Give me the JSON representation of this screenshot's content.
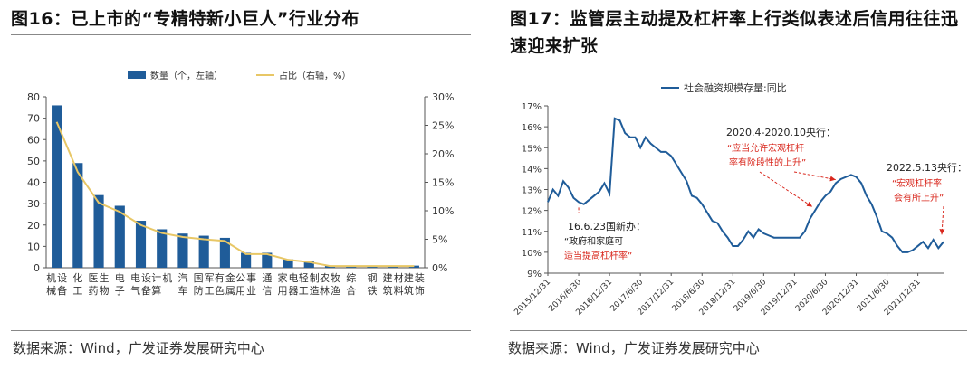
{
  "left": {
    "title": "图16：已上市的“专精特新小巨人”行业分布",
    "source": "数据来源：Wind，广发证券发展研究中心"
  },
  "right": {
    "title": "图17：监管层主动提及杠杆率上行类似表述后信用往往迅速迎来扩张",
    "source": "数据来源：Wind，广发证券发展研究中心"
  },
  "chart_data": [
    {
      "type": "bar",
      "categories": [
        "机械设备",
        "化工",
        "医药生物",
        "电子",
        "电气设备",
        "计算机",
        "汽车",
        "国防军工",
        "有色金属",
        "公用事业",
        "通信",
        "家用电器",
        "轻工制造",
        "农林牧渔",
        "综合",
        "钢铁",
        "建筑材料",
        "建筑装饰"
      ],
      "series": [
        {
          "name": "数量（个，左轴）",
          "axis": "left",
          "kind": "bar",
          "values": [
            76,
            49,
            34,
            29,
            22,
            18,
            16,
            15,
            14,
            7,
            7,
            4,
            3,
            1,
            1,
            1,
            1,
            1
          ]
        },
        {
          "name": "占比（右轴，%）",
          "axis": "right",
          "kind": "line",
          "values": [
            25.6,
            16.8,
            11.4,
            9.8,
            7.5,
            6.1,
            5.4,
            5.0,
            4.7,
            2.4,
            2.4,
            1.4,
            1.0,
            0.3,
            0.3,
            0.3,
            0.3,
            0.3
          ]
        }
      ],
      "ylim": [
        0,
        80
      ],
      "yticks": [
        0,
        10,
        20,
        30,
        40,
        50,
        60,
        70,
        80
      ],
      "y2lim": [
        0,
        30
      ],
      "y2ticks": [
        "0%",
        "5%",
        "10%",
        "15%",
        "20%",
        "25%",
        "30%"
      ],
      "legend_position": "top-center",
      "grid": false,
      "colors": {
        "bar": "#1f5c99",
        "line": "#e8c766"
      }
    },
    {
      "type": "line",
      "series": [
        {
          "name": "社会融资规模存量:同比",
          "x": [
            "2015-12",
            "2016-01",
            "2016-02",
            "2016-03",
            "2016-04",
            "2016-05",
            "2016-06",
            "2016-07",
            "2016-08",
            "2016-09",
            "2016-10",
            "2016-11",
            "2016-12",
            "2017-01",
            "2017-02",
            "2017-03",
            "2017-04",
            "2017-05",
            "2017-06",
            "2017-07",
            "2017-08",
            "2017-09",
            "2017-10",
            "2017-11",
            "2017-12",
            "2018-01",
            "2018-02",
            "2018-03",
            "2018-04",
            "2018-05",
            "2018-06",
            "2018-07",
            "2018-08",
            "2018-09",
            "2018-10",
            "2018-11",
            "2018-12",
            "2019-01",
            "2019-02",
            "2019-03",
            "2019-04",
            "2019-05",
            "2019-06",
            "2019-07",
            "2019-08",
            "2019-09",
            "2019-10",
            "2019-11",
            "2019-12",
            "2020-01",
            "2020-02",
            "2020-03",
            "2020-04",
            "2020-05",
            "2020-06",
            "2020-07",
            "2020-08",
            "2020-09",
            "2020-10",
            "2020-11",
            "2020-12",
            "2021-01",
            "2021-02",
            "2021-03",
            "2021-04",
            "2021-05",
            "2021-06",
            "2021-07",
            "2021-08",
            "2021-09",
            "2021-10",
            "2021-11",
            "2021-12",
            "2022-01",
            "2022-02",
            "2022-03",
            "2022-04",
            "2022-05"
          ],
          "values": [
            12.4,
            13.0,
            12.7,
            13.4,
            13.1,
            12.6,
            12.4,
            12.3,
            12.5,
            12.7,
            12.9,
            13.3,
            12.8,
            16.4,
            16.3,
            15.7,
            15.5,
            15.5,
            15.0,
            15.5,
            15.2,
            15.0,
            14.8,
            14.8,
            14.6,
            14.2,
            13.8,
            13.4,
            12.7,
            12.6,
            12.3,
            11.9,
            11.5,
            11.4,
            11.0,
            10.7,
            10.3,
            10.3,
            10.6,
            11.0,
            10.7,
            11.1,
            10.9,
            10.8,
            10.7,
            10.7,
            10.7,
            10.7,
            10.7,
            10.7,
            11.0,
            11.6,
            12.0,
            12.4,
            12.7,
            12.9,
            13.3,
            13.5,
            13.6,
            13.7,
            13.6,
            13.3,
            12.7,
            12.3,
            11.7,
            11.0,
            10.9,
            10.7,
            10.3,
            10.0,
            10.0,
            10.1,
            10.3,
            10.5,
            10.2,
            10.6,
            10.2,
            10.5
          ]
        }
      ],
      "xticks": [
        "2015/12/31",
        "2016/6/30",
        "2016/12/31",
        "2017/6/30",
        "2017/12/31",
        "2018/6/30",
        "2018/12/31",
        "2019/6/30",
        "2019/12/31",
        "2020/6/30",
        "2020/12/31",
        "2021/6/30",
        "2021/12/31"
      ],
      "ylim": [
        9,
        17
      ],
      "yticks": [
        "9%",
        "10%",
        "11%",
        "12%",
        "13%",
        "14%",
        "15%",
        "16%",
        "17%"
      ],
      "legend_position": "top-center",
      "grid": false,
      "colors": {
        "line": "#1f5c99",
        "annotation_red": "#d9281e"
      },
      "annotations": [
        {
          "lines": [
            "16.6.23国新办：",
            "“政府和家庭可",
            "适当提高杠杆率”"
          ],
          "target": "2016-06"
        },
        {
          "lines": [
            "2020.4-2020.10央行：",
            "“应当允许宏观杠杆",
            "率有阶段性的上升”"
          ],
          "target": "2020-04"
        },
        {
          "lines": [
            "2022.5.13央行：",
            "“宏观杠杆率",
            "会有所上升”"
          ],
          "target": "2022-05"
        }
      ]
    }
  ]
}
